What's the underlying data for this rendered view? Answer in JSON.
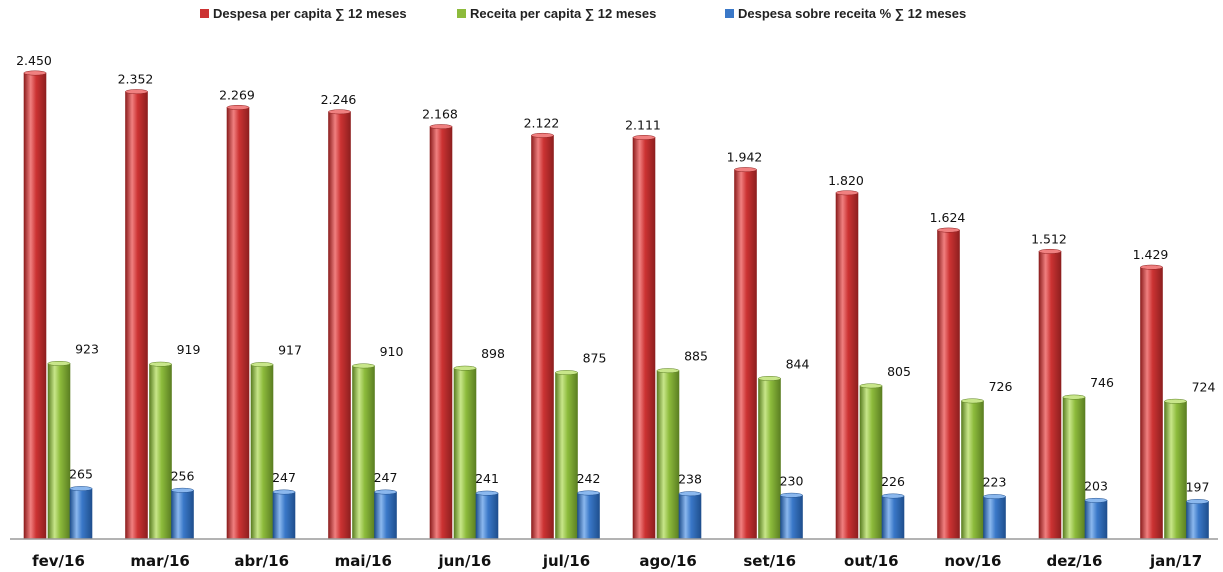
{
  "chart_data": {
    "type": "bar",
    "categories": [
      "fev/16",
      "mar/16",
      "abr/16",
      "mai/16",
      "jun/16",
      "jul/16",
      "ago/16",
      "set/16",
      "out/16",
      "nov/16",
      "dez/16",
      "jan/17"
    ],
    "series": [
      {
        "name": "Despesa per capita ∑ 12 meses",
        "values": [
          2450,
          2352,
          2269,
          2246,
          2168,
          2122,
          2111,
          1942,
          1820,
          1624,
          1512,
          1429
        ],
        "labels": [
          "2.450",
          "2.352",
          "2.269",
          "2.246",
          "2.168",
          "2.122",
          "2.111",
          "1.942",
          "1.820",
          "1.624",
          "1.512",
          "1.429"
        ],
        "color": "#cc3333",
        "light": "#f08080",
        "dark": "#8e1f1f"
      },
      {
        "name": "Receita per capita ∑ 12 meses",
        "values": [
          923,
          919,
          917,
          910,
          898,
          875,
          885,
          844,
          805,
          726,
          746,
          724
        ],
        "labels": [
          "923",
          "919",
          "917",
          "910",
          "898",
          "875",
          "885",
          "844",
          "805",
          "726",
          "746",
          "724"
        ],
        "color": "#8dbb3c",
        "light": "#c8e68a",
        "dark": "#5b7f22"
      },
      {
        "name": "Despesa sobre receita % ∑ 12 meses",
        "values": [
          265,
          256,
          247,
          247,
          241,
          242,
          238,
          230,
          226,
          223,
          203,
          197
        ],
        "labels": [
          "265",
          "256",
          "247",
          "247",
          "241",
          "242",
          "238",
          "230",
          "226",
          "223",
          "203",
          "197"
        ],
        "color": "#3a78c8",
        "light": "#8bb8ee",
        "dark": "#1f4f8e"
      }
    ],
    "title": "",
    "xlabel": "",
    "ylabel": "",
    "ylim": [
      0,
      2450
    ],
    "grid": false,
    "legend_position": "top"
  }
}
